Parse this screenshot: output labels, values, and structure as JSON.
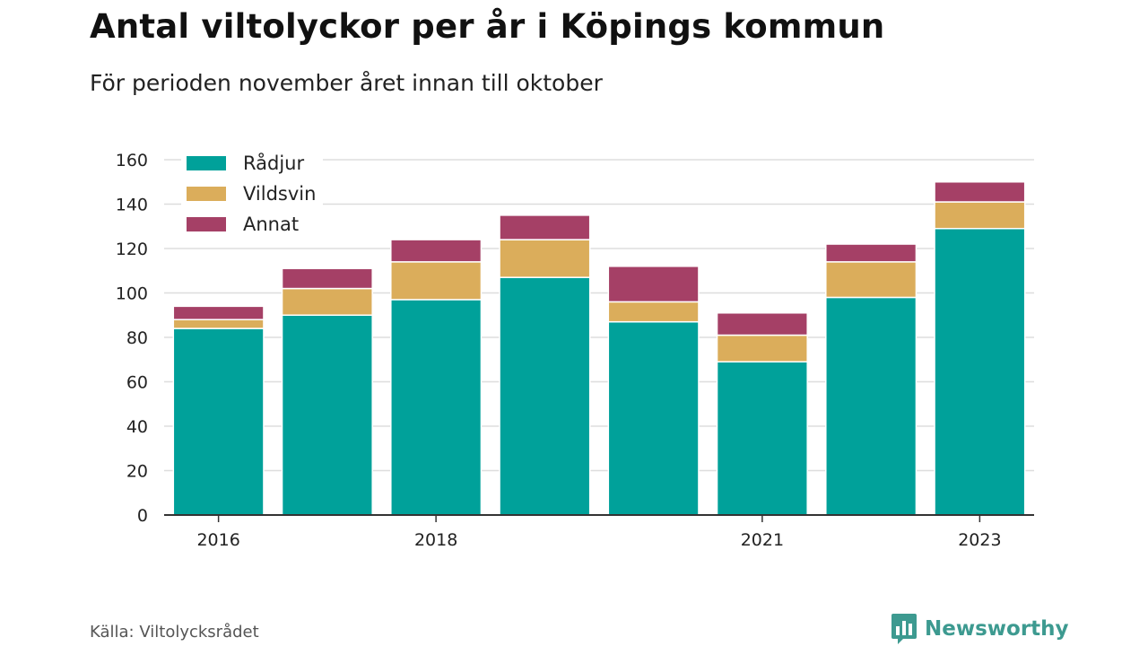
{
  "header": {
    "title": "Antal viltolyckor per år i Köpings kommun",
    "subtitle": "För perioden november året innan till oktober"
  },
  "footer": {
    "source": "Källa: Viltolycksrådet",
    "brand": "Newsworthy",
    "brand_icon": "bar-chart-icon",
    "brand_color": "#3d9a90"
  },
  "chart_data": {
    "type": "bar",
    "stacked": true,
    "categories": [
      "2016",
      "2017",
      "2018",
      "2019",
      "2020",
      "2021",
      "2022",
      "2023"
    ],
    "x_tick_labels": [
      "2016",
      "",
      "2018",
      "",
      "",
      "2021",
      "",
      "2023"
    ],
    "series": [
      {
        "name": "Rådjur",
        "color": "#00a19a",
        "values": [
          84,
          90,
          97,
          107,
          87,
          69,
          98,
          129
        ]
      },
      {
        "name": "Vildsvin",
        "color": "#dbad5b",
        "values": [
          4,
          12,
          17,
          17,
          9,
          12,
          16,
          12
        ]
      },
      {
        "name": "Annat",
        "color": "#a54066",
        "values": [
          6,
          9,
          10,
          11,
          16,
          10,
          8,
          9
        ]
      }
    ],
    "ylim": [
      0,
      160
    ],
    "yticks": [
      0,
      20,
      40,
      60,
      80,
      100,
      120,
      140,
      160
    ],
    "grid": true,
    "legend": "top-left",
    "xlabel": "",
    "ylabel": ""
  }
}
